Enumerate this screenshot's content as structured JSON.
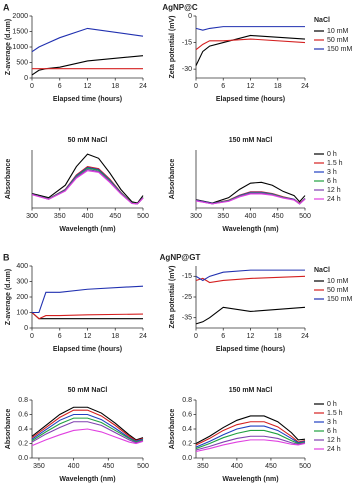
{
  "panels": [
    {
      "label": "A",
      "title": "AgNP@C"
    },
    {
      "label": "B",
      "title": "AgNP@GT"
    }
  ],
  "chart_data": [
    {
      "type": "line",
      "xlabel": "Elapsed time (hours)",
      "ylabel": "Z-average (d.nm)",
      "x": [
        0,
        1.5,
        3,
        6,
        12,
        24
      ],
      "xlim": [
        0,
        24
      ],
      "xticks": [
        0,
        6,
        12,
        18,
        24
      ],
      "ylim": [
        0,
        2000
      ],
      "yticks": [
        0,
        500,
        1000,
        1500,
        2000
      ],
      "series": [
        {
          "color": "#000000",
          "values": [
            100,
            250,
            300,
            350,
            550,
            720
          ]
        },
        {
          "color": "#d42020",
          "values": [
            300,
            300,
            300,
            300,
            300,
            300
          ]
        },
        {
          "color": "#2030b0",
          "values": [
            850,
            1000,
            1100,
            1300,
            1600,
            1350
          ]
        }
      ]
    },
    {
      "type": "line",
      "xlabel": "Elapsed time (hours)",
      "ylabel": "Zeta potential (mV)",
      "x": [
        0,
        1.5,
        3,
        6,
        12,
        24
      ],
      "xlim": [
        0,
        24
      ],
      "xticks": [
        0,
        6,
        12,
        18,
        24
      ],
      "ylim": [
        -35,
        0
      ],
      "yticks": [
        -30,
        -15,
        0
      ],
      "legend": true,
      "legend_title": "NaCl",
      "series": [
        {
          "name": "10 mM",
          "color": "#000000",
          "values": [
            -28,
            -20,
            -17,
            -15,
            -11,
            -13
          ]
        },
        {
          "name": "50 mM",
          "color": "#d42020",
          "values": [
            -19,
            -16,
            -14,
            -14,
            -13,
            -15
          ]
        },
        {
          "name": "150 mM",
          "color": "#2030b0",
          "values": [
            -7,
            -8,
            -7,
            -6,
            -6,
            -6
          ]
        }
      ]
    },
    {
      "type": "line",
      "title": "50 mM NaCl",
      "xlabel": "Wavelength (nm)",
      "ylabel": "Absorbance",
      "x": [
        300,
        330,
        360,
        380,
        400,
        420,
        440,
        460,
        480,
        490,
        500
      ],
      "xlim": [
        300,
        500
      ],
      "xticks": [
        300,
        350,
        400,
        450,
        500
      ],
      "ylim": [
        0,
        1.4
      ],
      "yticks": [],
      "series": [
        {
          "color": "#000000",
          "values": [
            0.35,
            0.25,
            0.55,
            1.0,
            1.3,
            1.2,
            0.85,
            0.45,
            0.15,
            0.12,
            0.3
          ]
        },
        {
          "color": "#d42020",
          "values": [
            0.33,
            0.22,
            0.45,
            0.8,
            1.0,
            0.95,
            0.7,
            0.38,
            0.12,
            0.1,
            0.25
          ]
        },
        {
          "color": "#2040c0",
          "values": [
            0.33,
            0.22,
            0.44,
            0.78,
            0.98,
            0.93,
            0.68,
            0.37,
            0.12,
            0.1,
            0.25
          ]
        },
        {
          "color": "#20a040",
          "values": [
            0.33,
            0.22,
            0.43,
            0.76,
            0.96,
            0.91,
            0.66,
            0.36,
            0.12,
            0.1,
            0.25
          ]
        },
        {
          "color": "#8040b0",
          "values": [
            0.33,
            0.21,
            0.42,
            0.74,
            0.93,
            0.88,
            0.64,
            0.35,
            0.11,
            0.1,
            0.24
          ]
        },
        {
          "color": "#e040e0",
          "values": [
            0.32,
            0.21,
            0.41,
            0.72,
            0.9,
            0.86,
            0.62,
            0.34,
            0.11,
            0.1,
            0.24
          ]
        }
      ]
    },
    {
      "type": "line",
      "title": "150 mM NaCl",
      "xlabel": "Wavelength (nm)",
      "ylabel": "Absorbance",
      "x": [
        300,
        330,
        360,
        380,
        400,
        420,
        440,
        460,
        480,
        490,
        500
      ],
      "xlim": [
        300,
        500
      ],
      "xticks": [
        300,
        350,
        400,
        450,
        500
      ],
      "ylim": [
        0,
        1.4
      ],
      "yticks": [],
      "legend": true,
      "series": [
        {
          "name": "0 h",
          "color": "#000000",
          "values": [
            0.2,
            0.12,
            0.25,
            0.45,
            0.6,
            0.62,
            0.55,
            0.4,
            0.3,
            0.15,
            0.3
          ]
        },
        {
          "name": "1.5 h",
          "color": "#d42020",
          "values": [
            0.19,
            0.11,
            0.19,
            0.31,
            0.39,
            0.39,
            0.35,
            0.27,
            0.21,
            0.11,
            0.23
          ]
        },
        {
          "name": "3 h",
          "color": "#2040c0",
          "values": [
            0.19,
            0.11,
            0.18,
            0.3,
            0.38,
            0.38,
            0.34,
            0.26,
            0.21,
            0.1,
            0.23
          ]
        },
        {
          "name": "6 h",
          "color": "#20a040",
          "values": [
            0.18,
            0.1,
            0.18,
            0.29,
            0.37,
            0.37,
            0.33,
            0.26,
            0.2,
            0.1,
            0.22
          ]
        },
        {
          "name": "12 h",
          "color": "#8040b0",
          "values": [
            0.18,
            0.1,
            0.17,
            0.28,
            0.36,
            0.36,
            0.32,
            0.25,
            0.2,
            0.1,
            0.22
          ]
        },
        {
          "name": "24 h",
          "color": "#e040e0",
          "values": [
            0.17,
            0.1,
            0.16,
            0.27,
            0.34,
            0.34,
            0.31,
            0.24,
            0.19,
            0.1,
            0.21
          ]
        }
      ]
    },
    {
      "type": "line",
      "xlabel": "Elapsed time (hours)",
      "ylabel": "Z-average (d.nm)",
      "x": [
        0,
        1.5,
        3,
        6,
        12,
        24
      ],
      "xlim": [
        0,
        24
      ],
      "xticks": [
        0,
        6,
        12,
        18,
        24
      ],
      "ylim": [
        0,
        400
      ],
      "yticks": [
        0,
        100,
        200,
        300,
        400
      ],
      "series": [
        {
          "color": "#000000",
          "values": [
            100,
            60,
            60,
            60,
            60,
            60
          ]
        },
        {
          "color": "#d42020",
          "values": [
            100,
            60,
            80,
            80,
            85,
            90
          ]
        },
        {
          "color": "#2030b0",
          "values": [
            100,
            100,
            230,
            230,
            250,
            270
          ]
        }
      ]
    },
    {
      "type": "line",
      "xlabel": "Elapsed time (hours)",
      "ylabel": "Zeta potential (mV)",
      "x": [
        0,
        1.5,
        3,
        6,
        12,
        24
      ],
      "xlim": [
        0,
        24
      ],
      "xticks": [
        0,
        6,
        12,
        18,
        24
      ],
      "ylim": [
        -40,
        -10
      ],
      "yticks": [
        -35,
        -25,
        -15
      ],
      "legend": true,
      "legend_title": "NaCl",
      "series": [
        {
          "name": "10 mM",
          "color": "#000000",
          "values": [
            -38,
            -37,
            -35,
            -30,
            -32,
            -30
          ]
        },
        {
          "name": "50 mM",
          "color": "#d42020",
          "values": [
            -17,
            -16,
            -18,
            -17,
            -16,
            -15
          ]
        },
        {
          "name": "150 mM",
          "color": "#2030b0",
          "values": [
            -15,
            -17,
            -15,
            -13,
            -12,
            -12
          ]
        }
      ]
    },
    {
      "type": "line",
      "title": "50 mM NaCl",
      "xlabel": "Wavelength (nm)",
      "ylabel": "Absorbance",
      "x": [
        340,
        360,
        380,
        400,
        420,
        440,
        460,
        480,
        490,
        500
      ],
      "xlim": [
        340,
        500
      ],
      "xticks": [
        350,
        400,
        450,
        500
      ],
      "ylim": [
        0,
        0.8
      ],
      "yticks": [
        {
          "value": 0,
          "label": "0.0"
        },
        0.2,
        0.4,
        0.6,
        0.8
      ],
      "series": [
        {
          "color": "#000000",
          "values": [
            0.3,
            0.45,
            0.6,
            0.7,
            0.7,
            0.62,
            0.48,
            0.32,
            0.25,
            0.28
          ]
        },
        {
          "color": "#d42020",
          "values": [
            0.28,
            0.42,
            0.56,
            0.66,
            0.66,
            0.58,
            0.45,
            0.3,
            0.24,
            0.27
          ]
        },
        {
          "color": "#2040c0",
          "values": [
            0.26,
            0.39,
            0.52,
            0.6,
            0.6,
            0.53,
            0.41,
            0.28,
            0.23,
            0.26
          ]
        },
        {
          "color": "#20a040",
          "values": [
            0.24,
            0.36,
            0.47,
            0.55,
            0.55,
            0.49,
            0.38,
            0.27,
            0.22,
            0.25
          ]
        },
        {
          "color": "#8040b0",
          "values": [
            0.22,
            0.33,
            0.42,
            0.5,
            0.5,
            0.45,
            0.35,
            0.25,
            0.21,
            0.24
          ]
        },
        {
          "color": "#e040e0",
          "values": [
            0.17,
            0.25,
            0.32,
            0.38,
            0.4,
            0.36,
            0.29,
            0.22,
            0.2,
            0.23
          ]
        }
      ]
    },
    {
      "type": "line",
      "title": "150 mM NaCl",
      "xlabel": "Wavelength (nm)",
      "ylabel": "Absorbance",
      "x": [
        340,
        360,
        380,
        400,
        420,
        440,
        460,
        480,
        490,
        500
      ],
      "xlim": [
        340,
        500
      ],
      "xticks": [
        350,
        400,
        450,
        500
      ],
      "ylim": [
        0,
        0.8
      ],
      "yticks": [
        {
          "value": 0,
          "label": "0.0"
        },
        0.2,
        0.4,
        0.6,
        0.8
      ],
      "legend": true,
      "series": [
        {
          "name": "0 h",
          "color": "#000000",
          "values": [
            0.2,
            0.3,
            0.42,
            0.52,
            0.58,
            0.58,
            0.5,
            0.35,
            0.25,
            0.26
          ]
        },
        {
          "name": "1.5 h",
          "color": "#d42020",
          "values": [
            0.18,
            0.27,
            0.38,
            0.46,
            0.5,
            0.5,
            0.43,
            0.3,
            0.22,
            0.24
          ]
        },
        {
          "name": "3 h",
          "color": "#2040c0",
          "values": [
            0.15,
            0.23,
            0.32,
            0.4,
            0.44,
            0.44,
            0.38,
            0.27,
            0.21,
            0.23
          ]
        },
        {
          "name": "6 h",
          "color": "#20a040",
          "values": [
            0.13,
            0.2,
            0.28,
            0.34,
            0.38,
            0.38,
            0.33,
            0.24,
            0.2,
            0.22
          ]
        },
        {
          "name": "12 h",
          "color": "#8040b0",
          "values": [
            0.11,
            0.16,
            0.22,
            0.27,
            0.3,
            0.3,
            0.27,
            0.21,
            0.19,
            0.21
          ]
        },
        {
          "name": "24 h",
          "color": "#e040e0",
          "values": [
            0.09,
            0.13,
            0.18,
            0.22,
            0.25,
            0.25,
            0.23,
            0.19,
            0.18,
            0.2
          ]
        }
      ]
    }
  ]
}
